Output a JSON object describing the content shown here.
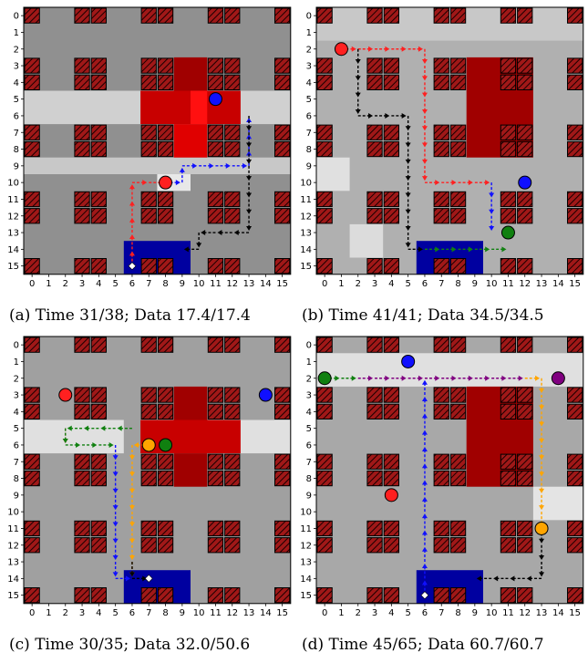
{
  "figure": {
    "colors": {
      "building_fill": "#a01818",
      "building_hatch": "#1a0000",
      "depot": "#0000a0",
      "agent_red": "#ff2020",
      "agent_blue": "#1010ff",
      "agent_green": "#108010",
      "agent_orange": "#ffa500",
      "agent_purple": "#800080",
      "path_black": "#000000"
    },
    "buildings": [
      [
        0,
        0
      ],
      [
        3,
        0
      ],
      [
        4,
        0
      ],
      [
        7,
        0
      ],
      [
        8,
        0
      ],
      [
        11,
        0
      ],
      [
        12,
        0
      ],
      [
        15,
        0
      ],
      [
        0,
        3
      ],
      [
        3,
        3
      ],
      [
        4,
        3
      ],
      [
        7,
        3
      ],
      [
        8,
        3
      ],
      [
        11,
        3
      ],
      [
        12,
        3
      ],
      [
        15,
        3
      ],
      [
        0,
        4
      ],
      [
        3,
        4
      ],
      [
        4,
        4
      ],
      [
        7,
        4
      ],
      [
        8,
        4
      ],
      [
        11,
        4
      ],
      [
        12,
        4
      ],
      [
        15,
        4
      ],
      [
        0,
        7
      ],
      [
        3,
        7
      ],
      [
        4,
        7
      ],
      [
        7,
        7
      ],
      [
        8,
        7
      ],
      [
        11,
        7
      ],
      [
        12,
        7
      ],
      [
        15,
        7
      ],
      [
        0,
        8
      ],
      [
        3,
        8
      ],
      [
        4,
        8
      ],
      [
        7,
        8
      ],
      [
        8,
        8
      ],
      [
        11,
        8
      ],
      [
        12,
        8
      ],
      [
        15,
        8
      ],
      [
        0,
        11
      ],
      [
        3,
        11
      ],
      [
        4,
        11
      ],
      [
        7,
        11
      ],
      [
        8,
        11
      ],
      [
        11,
        11
      ],
      [
        12,
        11
      ],
      [
        15,
        11
      ],
      [
        0,
        12
      ],
      [
        3,
        12
      ],
      [
        4,
        12
      ],
      [
        7,
        12
      ],
      [
        8,
        12
      ],
      [
        11,
        12
      ],
      [
        12,
        12
      ],
      [
        15,
        12
      ],
      [
        0,
        15
      ],
      [
        3,
        15
      ],
      [
        4,
        15
      ],
      [
        7,
        15
      ],
      [
        8,
        15
      ],
      [
        11,
        15
      ],
      [
        12,
        15
      ],
      [
        15,
        15
      ]
    ],
    "depot": {
      "x0": 6,
      "y0": 14,
      "x1": 10,
      "y1": 16
    },
    "panels": [
      {
        "id": "a",
        "caption": "(a) Time 31/38; Data 17.4/17.4",
        "background": "#909090",
        "light_bands": [
          {
            "x0": 0,
            "y0": 5,
            "x1": 16,
            "y1": 7,
            "color": "#d0d0d0"
          },
          {
            "x0": 0,
            "y0": 9,
            "x1": 16,
            "y1": 10,
            "color": "#c8c8c8"
          },
          {
            "x0": 8,
            "y0": 10,
            "x1": 10,
            "y1": 11,
            "color": "#e8e8e8"
          }
        ],
        "red_regions": [
          {
            "x0": 7,
            "y0": 5,
            "x1": 13,
            "y1": 7,
            "color": "#c80000"
          },
          {
            "x0": 9,
            "y0": 3,
            "x1": 11,
            "y1": 5,
            "color": "#a00000"
          },
          {
            "x0": 9,
            "y0": 7,
            "x1": 11,
            "y1": 9,
            "color": "#e00000"
          },
          {
            "x0": 10,
            "y0": 5,
            "x1": 11,
            "y1": 7,
            "color": "#ff1010"
          }
        ],
        "paths": [
          {
            "color": "red",
            "points": [
              [
                6,
                15
              ],
              [
                6,
                10
              ],
              [
                8,
                10
              ]
            ]
          },
          {
            "color": "blue",
            "points": [
              [
                8,
                10
              ],
              [
                9,
                10
              ],
              [
                9,
                9
              ],
              [
                13,
                9
              ],
              [
                13,
                6
              ]
            ]
          },
          {
            "color": "black",
            "points": [
              [
                13,
                6
              ],
              [
                13,
                13
              ],
              [
                12,
                13
              ],
              [
                10,
                13
              ],
              [
                10,
                14
              ],
              [
                9,
                14
              ]
            ]
          }
        ],
        "agents": [
          {
            "x": 11,
            "y": 5,
            "color": "blue"
          },
          {
            "x": 8,
            "y": 10,
            "color": "red"
          }
        ],
        "start_marker": {
          "x": 6,
          "y": 15
        }
      },
      {
        "id": "b",
        "caption": "(b) Time 41/41; Data 34.5/34.5",
        "background": "#b0b0b0",
        "light_bands": [
          {
            "x0": 0,
            "y0": 0,
            "x1": 16,
            "y1": 2,
            "color": "#c8c8c8"
          },
          {
            "x0": 0,
            "y0": 9,
            "x1": 2,
            "y1": 11,
            "color": "#e0e0e0"
          },
          {
            "x0": 2,
            "y0": 13,
            "x1": 4,
            "y1": 15,
            "color": "#dcdcdc"
          }
        ],
        "red_regions": [
          {
            "x0": 9,
            "y0": 3,
            "x1": 13,
            "y1": 9,
            "color": "#a00000"
          }
        ],
        "paths": [
          {
            "color": "red",
            "points": [
              [
                1,
                2
              ],
              [
                6,
                2
              ],
              [
                6,
                10
              ],
              [
                10,
                10
              ]
            ]
          },
          {
            "color": "blue",
            "points": [
              [
                10,
                10
              ],
              [
                10,
                13
              ]
            ]
          },
          {
            "color": "black",
            "points": [
              [
                2,
                2
              ],
              [
                2,
                6
              ],
              [
                5,
                6
              ],
              [
                5,
                14
              ],
              [
                6,
                14
              ]
            ]
          },
          {
            "color": "green",
            "points": [
              [
                6,
                14
              ],
              [
                11,
                14
              ]
            ]
          }
        ],
        "agents": [
          {
            "x": 1,
            "y": 2,
            "color": "red"
          },
          {
            "x": 12,
            "y": 10,
            "color": "blue"
          },
          {
            "x": 11,
            "y": 13,
            "color": "green"
          }
        ],
        "start_marker": null
      },
      {
        "id": "c",
        "caption": "(c) Time 30/35; Data 32.0/50.6",
        "background": "#a0a0a0",
        "light_bands": [
          {
            "x0": 0,
            "y0": 5,
            "x1": 6,
            "y1": 7,
            "color": "#e0e0e0"
          },
          {
            "x0": 12,
            "y0": 5,
            "x1": 16,
            "y1": 7,
            "color": "#e0e0e0"
          }
        ],
        "red_regions": [
          {
            "x0": 7,
            "y0": 5,
            "x1": 13,
            "y1": 7,
            "color": "#c80000"
          },
          {
            "x0": 9,
            "y0": 3,
            "x1": 11,
            "y1": 5,
            "color": "#a00000"
          },
          {
            "x0": 9,
            "y0": 7,
            "x1": 11,
            "y1": 9,
            "color": "#a00000"
          }
        ],
        "paths": [
          {
            "color": "red",
            "points": [
              [
                2,
                5
              ],
              [
                2,
                6
              ]
            ]
          },
          {
            "color": "green",
            "points": [
              [
                6,
                5
              ],
              [
                2,
                5
              ],
              [
                2,
                6
              ],
              [
                5,
                6
              ]
            ]
          },
          {
            "color": "blue",
            "points": [
              [
                5,
                6
              ],
              [
                5,
                14
              ],
              [
                6,
                14
              ]
            ]
          },
          {
            "color": "orange",
            "points": [
              [
                7,
                6
              ],
              [
                6,
                6
              ],
              [
                6,
                14
              ]
            ]
          },
          {
            "color": "black",
            "points": [
              [
                6,
                13
              ],
              [
                6,
                14
              ],
              [
                7,
                14
              ]
            ]
          }
        ],
        "agents": [
          {
            "x": 2,
            "y": 3,
            "color": "red"
          },
          {
            "x": 14,
            "y": 3,
            "color": "blue"
          },
          {
            "x": 7,
            "y": 6,
            "color": "orange"
          },
          {
            "x": 8,
            "y": 6,
            "color": "green"
          }
        ],
        "start_marker": {
          "x": 7,
          "y": 14
        }
      },
      {
        "id": "d",
        "caption": "(d) Time 45/65; Data 60.7/60.7",
        "background": "#a8a8a8",
        "light_bands": [
          {
            "x0": 0,
            "y0": 1,
            "x1": 16,
            "y1": 3,
            "color": "#e0e0e0"
          },
          {
            "x0": 13,
            "y0": 9,
            "x1": 16,
            "y1": 11,
            "color": "#e4e4e4"
          }
        ],
        "red_regions": [
          {
            "x0": 9,
            "y0": 3,
            "x1": 13,
            "y1": 9,
            "color": "#a00000"
          }
        ],
        "paths": [
          {
            "color": "green",
            "points": [
              [
                0,
                2
              ],
              [
                2,
                2
              ]
            ]
          },
          {
            "color": "purple",
            "points": [
              [
                2,
                2
              ],
              [
                12,
                2
              ]
            ]
          },
          {
            "color": "orange",
            "points": [
              [
                12,
                2
              ],
              [
                13,
                2
              ],
              [
                13,
                11
              ]
            ]
          },
          {
            "color": "black",
            "points": [
              [
                13,
                11
              ],
              [
                13,
                14
              ],
              [
                9,
                14
              ]
            ]
          },
          {
            "color": "blue",
            "points": [
              [
                6,
                15
              ],
              [
                6,
                2
              ]
            ]
          }
        ],
        "agents": [
          {
            "x": 0,
            "y": 2,
            "color": "green"
          },
          {
            "x": 5,
            "y": 1,
            "color": "blue"
          },
          {
            "x": 14,
            "y": 2,
            "color": "purple"
          },
          {
            "x": 4,
            "y": 9,
            "color": "red"
          },
          {
            "x": 13,
            "y": 11,
            "color": "orange"
          }
        ],
        "start_marker": {
          "x": 6,
          "y": 15
        }
      }
    ]
  }
}
